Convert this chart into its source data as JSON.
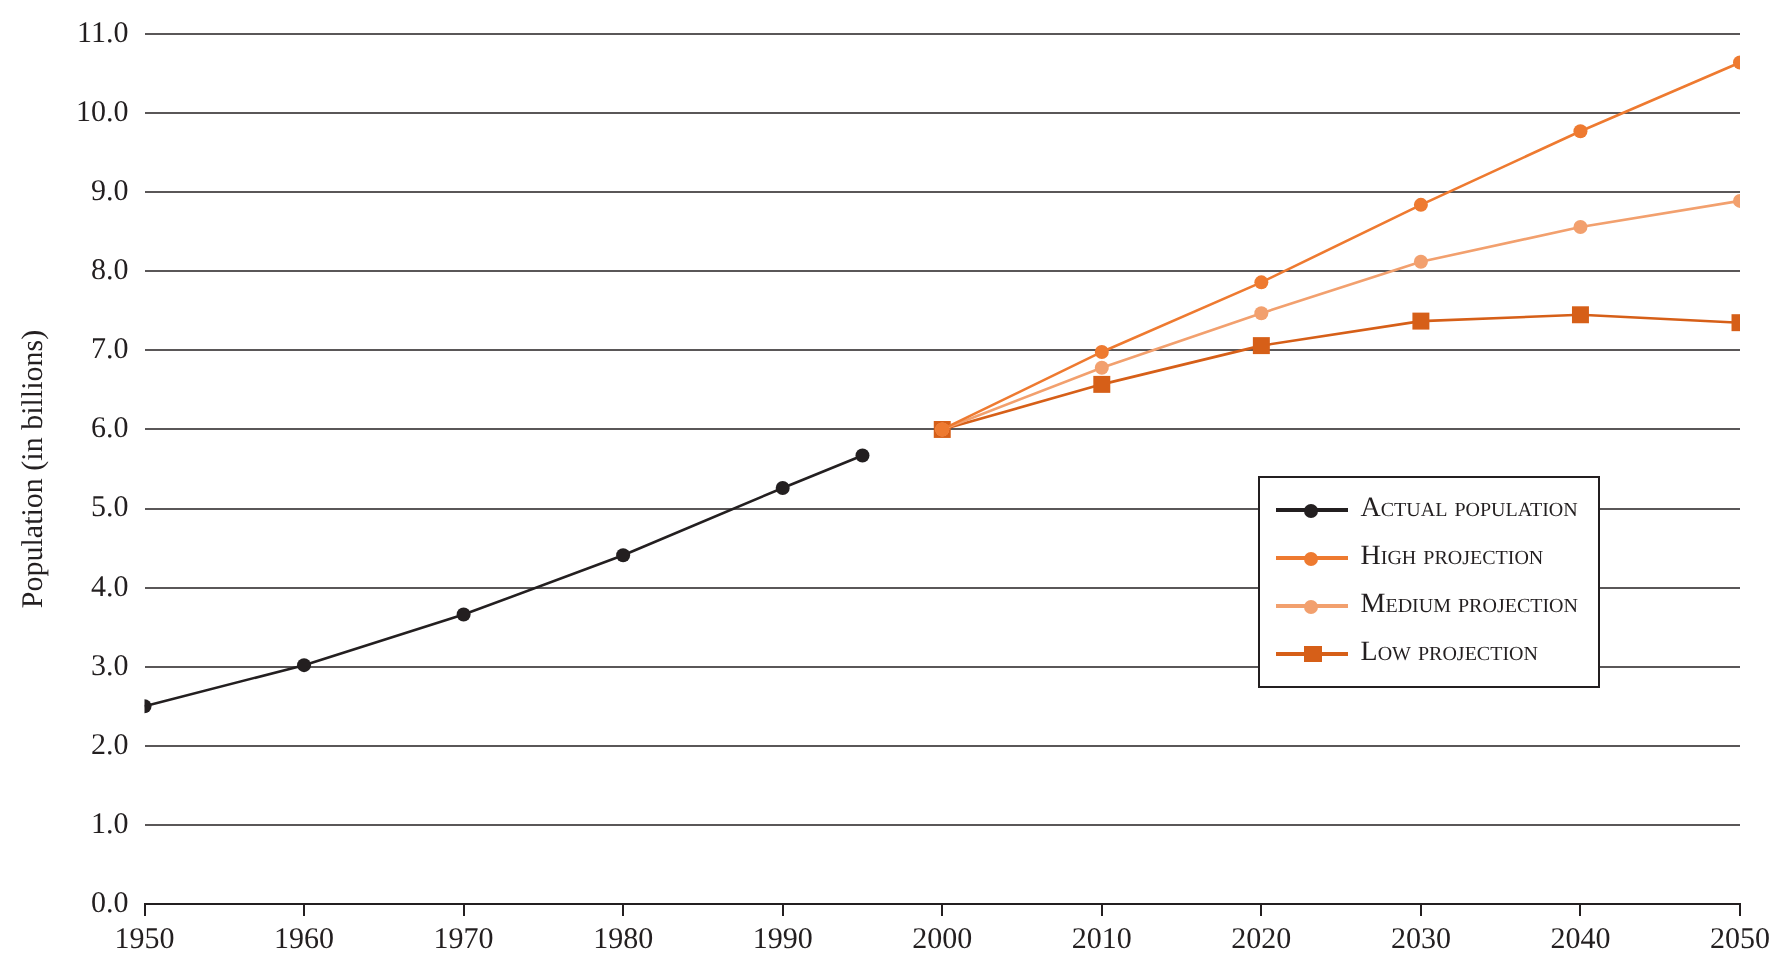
{
  "chart_data": {
    "type": "line",
    "ylabel": "Population (in billions)",
    "xlim": [
      1950,
      2050
    ],
    "xticks": [
      1950,
      1960,
      1970,
      1980,
      1990,
      2000,
      2010,
      2020,
      2030,
      2040,
      2050
    ],
    "ylim": [
      0,
      11
    ],
    "yticks": [
      {
        "value": 0,
        "label": "0.0"
      },
      {
        "value": 1,
        "label": "1.0"
      },
      {
        "value": 2,
        "label": "2.0"
      },
      {
        "value": 3,
        "label": "3.0"
      },
      {
        "value": 4,
        "label": "4.0"
      },
      {
        "value": 5,
        "label": "5.0"
      },
      {
        "value": 6,
        "label": "6.0"
      },
      {
        "value": 7,
        "label": "7.0"
      },
      {
        "value": 8,
        "label": "8.0"
      },
      {
        "value": 9,
        "label": "9.0"
      },
      {
        "value": 10,
        "label": "10.0"
      },
      {
        "value": 11,
        "label": "11.0"
      }
    ],
    "grid": "y",
    "legend": "right",
    "series": [
      {
        "name": "Actual population",
        "color": "#231f20",
        "marker": "circle",
        "x": [
          1950,
          1960,
          1970,
          1980,
          1990,
          1995
        ],
        "values": [
          2.5,
          3.02,
          3.66,
          4.41,
          5.26,
          5.67
        ]
      },
      {
        "name": "High projection",
        "color": "#ee7a30",
        "marker": "circle",
        "x": [
          2000,
          2010,
          2020,
          2030,
          2040,
          2050
        ],
        "values": [
          6.0,
          6.98,
          7.86,
          8.84,
          9.77,
          10.64
        ]
      },
      {
        "name": "Medium projection",
        "color": "#f2a06e",
        "marker": "circle",
        "x": [
          2000,
          2010,
          2020,
          2030,
          2040,
          2050
        ],
        "values": [
          6.0,
          6.78,
          7.47,
          8.12,
          8.56,
          8.89
        ]
      },
      {
        "name": "Low projection",
        "color": "#d65f18",
        "marker": "square",
        "x": [
          2000,
          2010,
          2020,
          2030,
          2040,
          2050
        ],
        "values": [
          6.0,
          6.57,
          7.06,
          7.37,
          7.45,
          7.35
        ]
      }
    ]
  }
}
